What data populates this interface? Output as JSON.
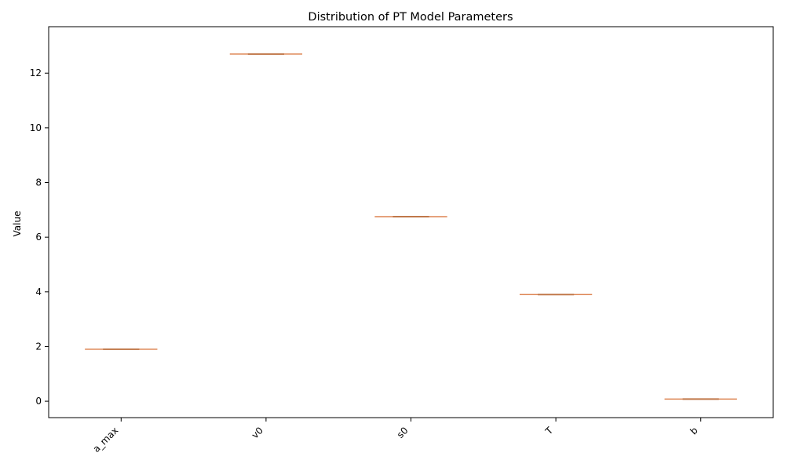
{
  "chart_data": {
    "type": "box",
    "title": "Distribution of PT Model Parameters",
    "xlabel": "",
    "ylabel": "Value",
    "categories": [
      "a_max",
      "v0",
      "s0",
      "T",
      "b"
    ],
    "values": [
      1.9,
      12.7,
      6.75,
      3.9,
      0.08
    ],
    "ylim": [
      -0.6,
      13.7
    ],
    "yticks": [
      0,
      2,
      4,
      6,
      8,
      10,
      12
    ],
    "grid": false,
    "colors": {
      "box": "#dd8452",
      "median": "#c0784a"
    }
  }
}
